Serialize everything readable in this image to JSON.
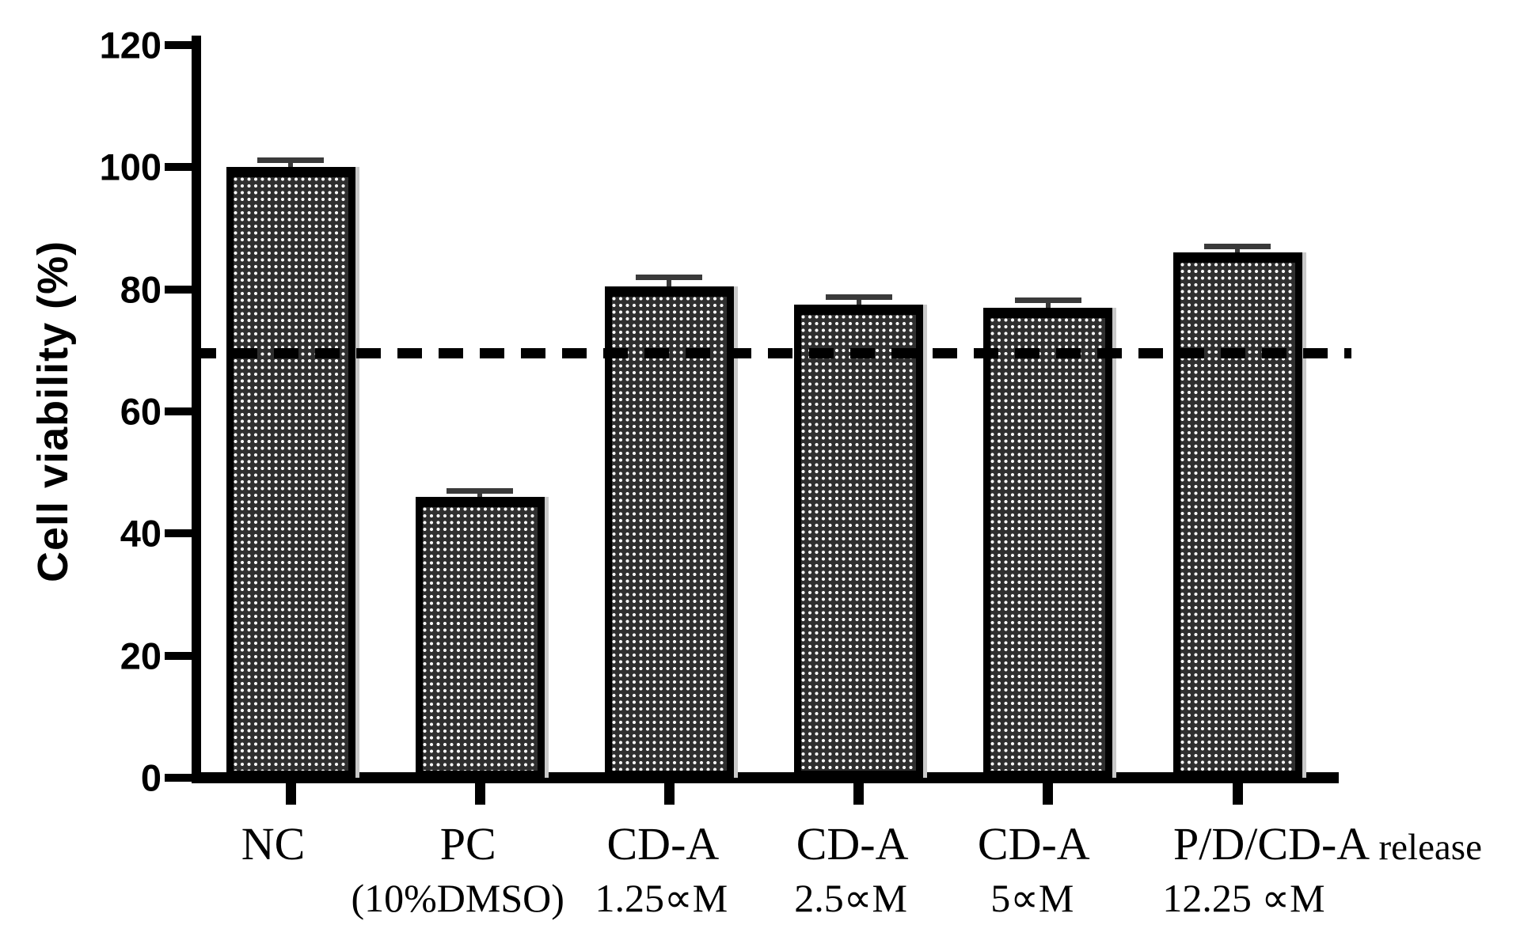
{
  "chart_data": {
    "type": "bar",
    "title": "",
    "xlabel": "",
    "ylabel": "Cell viability (%)",
    "ylim": [
      0,
      120
    ],
    "yticks": [
      0,
      20,
      40,
      60,
      80,
      100,
      120
    ],
    "grid": false,
    "legend": null,
    "categories": [
      {
        "label": "NC",
        "suffix": "",
        "sublabel": ""
      },
      {
        "label": "PC",
        "suffix": "",
        "sublabel": "(10%DMSO)"
      },
      {
        "label": "CD-A",
        "suffix": "",
        "sublabel": "1.25∝M"
      },
      {
        "label": "CD-A",
        "suffix": "",
        "sublabel": "2.5∝M"
      },
      {
        "label": "CD-A",
        "suffix": "",
        "sublabel": "5∝M"
      },
      {
        "label": "P/D/CD-A",
        "suffix": "release",
        "sublabel": "12.25 ∝M"
      }
    ],
    "values": [
      100,
      46,
      80.5,
      77.5,
      77,
      86
    ],
    "errors": [
      1.2,
      1.0,
      1.5,
      1.2,
      1.2,
      1.0
    ],
    "reference_line": {
      "value": 69.5,
      "style": "dashed",
      "color": "#000000"
    },
    "colors": {
      "bar_fill": "#2f2f2f",
      "bar_dots": "#ffffff",
      "bar_border": "#000000",
      "axis": "#000000",
      "bar_shadow": "#c9c9c9"
    }
  }
}
